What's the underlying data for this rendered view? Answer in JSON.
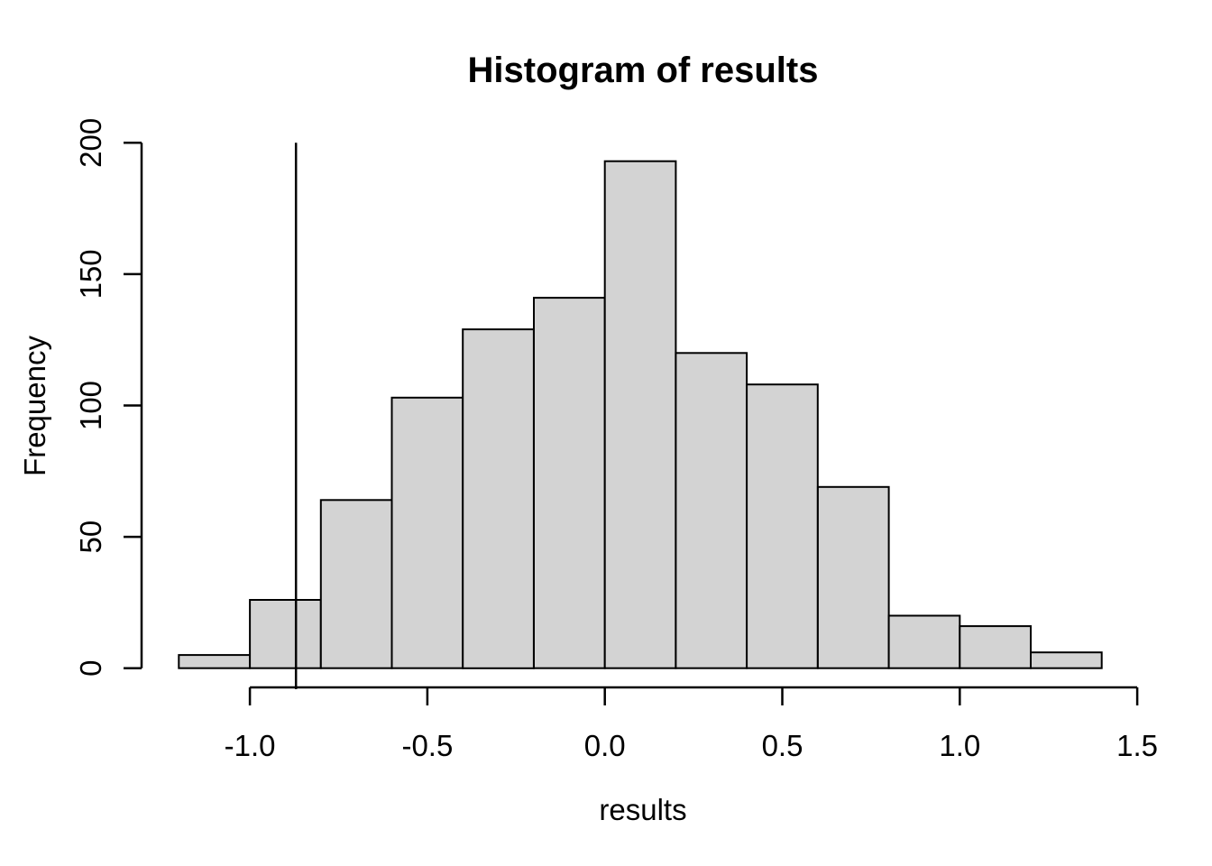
{
  "chart_data": {
    "type": "bar",
    "subtype": "histogram",
    "title": "Histogram of results",
    "xlabel": "results",
    "ylabel": "Frequency",
    "bin_start": -1.2,
    "bin_width": 0.2,
    "bin_edges": [
      -1.2,
      -1.0,
      -0.8,
      -0.6,
      -0.4,
      -0.2,
      0.0,
      0.2,
      0.4,
      0.6,
      0.8,
      1.0,
      1.2,
      1.4
    ],
    "counts": [
      5,
      26,
      64,
      103,
      129,
      141,
      193,
      120,
      108,
      69,
      20,
      16,
      6
    ],
    "total_n": 1000,
    "x_ticks": [
      {
        "value": -1.0,
        "label": "-1.0"
      },
      {
        "value": -0.5,
        "label": "-0.5"
      },
      {
        "value": 0.0,
        "label": "0.0"
      },
      {
        "value": 0.5,
        "label": "0.5"
      },
      {
        "value": 1.0,
        "label": "1.0"
      },
      {
        "value": 1.5,
        "label": "1.5"
      }
    ],
    "y_ticks": [
      {
        "value": 0,
        "label": "0"
      },
      {
        "value": 50,
        "label": "50"
      },
      {
        "value": 100,
        "label": "100"
      },
      {
        "value": 150,
        "label": "150"
      },
      {
        "value": 200,
        "label": "200"
      }
    ],
    "xlim": [
      -1.305,
      1.52
    ],
    "ylim": [
      -8,
      208
    ],
    "axis_x_range": [
      -1.0,
      1.5
    ],
    "axis_y_range": [
      0,
      200
    ],
    "reference_line_x": -0.87,
    "grid": false,
    "legend": null,
    "colors": {
      "bar_fill": "#d3d3d3",
      "bar_border": "#000000",
      "axis": "#000000",
      "reference_line": "#000000",
      "background": "#ffffff",
      "text": "#000000"
    }
  }
}
